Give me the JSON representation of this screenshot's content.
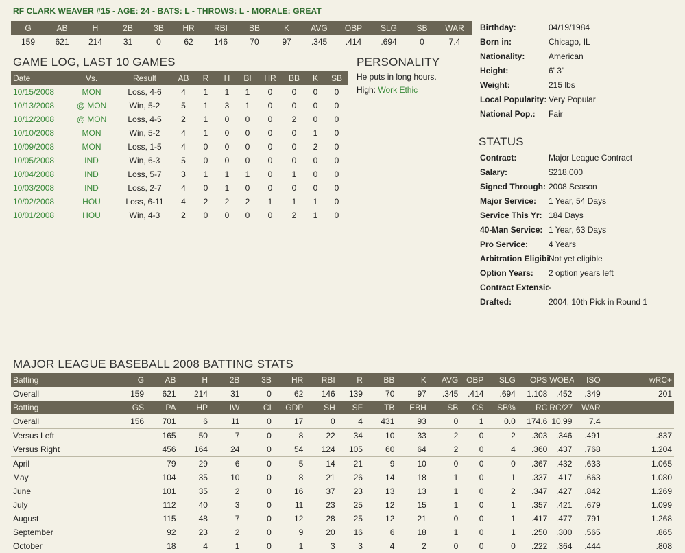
{
  "header": {
    "title": "RF CLARK WEAVER #15 - AGE: 24 - BATS: L - THROWS: L - MORALE: GREAT"
  },
  "summary": {
    "columns": [
      "G",
      "AB",
      "H",
      "2B",
      "3B",
      "HR",
      "RBI",
      "BB",
      "K",
      "AVG",
      "OBP",
      "SLG",
      "SB",
      "WAR"
    ],
    "values": [
      "159",
      "621",
      "214",
      "31",
      "0",
      "62",
      "146",
      "70",
      "97",
      ".345",
      ".414",
      ".694",
      "0",
      "7.4"
    ]
  },
  "game_log": {
    "title": "GAME LOG, LAST 10 GAMES",
    "columns": [
      "Date",
      "Vs.",
      "Result",
      "AB",
      "R",
      "H",
      "BI",
      "HR",
      "BB",
      "K",
      "SB"
    ],
    "rows": [
      [
        "10/15/2008",
        "MON",
        "Loss, 4-6",
        "4",
        "1",
        "1",
        "1",
        "0",
        "0",
        "0",
        "0"
      ],
      [
        "10/13/2008",
        "@ MON",
        "Win, 5-2",
        "5",
        "1",
        "3",
        "1",
        "0",
        "0",
        "0",
        "0"
      ],
      [
        "10/12/2008",
        "@ MON",
        "Loss, 4-5",
        "2",
        "1",
        "0",
        "0",
        "0",
        "2",
        "0",
        "0"
      ],
      [
        "10/10/2008",
        "MON",
        "Win, 5-2",
        "4",
        "1",
        "0",
        "0",
        "0",
        "0",
        "1",
        "0"
      ],
      [
        "10/09/2008",
        "MON",
        "Loss, 1-5",
        "4",
        "0",
        "0",
        "0",
        "0",
        "0",
        "2",
        "0"
      ],
      [
        "10/05/2008",
        "IND",
        "Win, 6-3",
        "5",
        "0",
        "0",
        "0",
        "0",
        "0",
        "0",
        "0"
      ],
      [
        "10/04/2008",
        "IND",
        "Loss, 5-7",
        "3",
        "1",
        "1",
        "1",
        "0",
        "1",
        "0",
        "0"
      ],
      [
        "10/03/2008",
        "IND",
        "Loss, 2-7",
        "4",
        "0",
        "1",
        "0",
        "0",
        "0",
        "0",
        "0"
      ],
      [
        "10/02/2008",
        "HOU",
        "Loss, 6-11",
        "4",
        "2",
        "2",
        "2",
        "1",
        "1",
        "1",
        "0"
      ],
      [
        "10/01/2008",
        "HOU",
        "Win, 4-3",
        "2",
        "0",
        "0",
        "0",
        "0",
        "2",
        "1",
        "0"
      ]
    ]
  },
  "personality": {
    "title": "PERSONALITY",
    "line1": "He puts in long hours.",
    "high_label": "High:",
    "high_value": "Work Ethic"
  },
  "bio": [
    {
      "k": "Birthday:",
      "v": "04/19/1984"
    },
    {
      "k": "Born in:",
      "v": "Chicago, IL"
    },
    {
      "k": "Nationality:",
      "v": "American"
    },
    {
      "k": "Height:",
      "v": "6' 3\""
    },
    {
      "k": "Weight:",
      "v": "215 lbs"
    },
    {
      "k": "Local Popularity:",
      "v": "Very Popular"
    },
    {
      "k": "National Pop.:",
      "v": "Fair"
    }
  ],
  "status": {
    "title": "STATUS",
    "items": [
      {
        "k": "Contract:",
        "v": "Major League Contract"
      },
      {
        "k": "Salary:",
        "v": "$218,000"
      },
      {
        "k": "Signed Through:",
        "v": "2008 Season"
      },
      {
        "k": "Major Service:",
        "v": "1 Year, 54 Days"
      },
      {
        "k": "Service This Yr:",
        "v": "184 Days"
      },
      {
        "k": "40-Man Service:",
        "v": "1 Year, 63 Days"
      },
      {
        "k": "Pro Service:",
        "v": "4 Years"
      },
      {
        "k": "Arbitration Eligibility:",
        "v": "Not yet eligible"
      },
      {
        "k": "Option Years:",
        "v": "2 option years left"
      },
      {
        "k": "Contract Extension:",
        "v": "-"
      },
      {
        "k": "Drafted:",
        "v": "2004, 10th Pick in Round 1"
      }
    ]
  },
  "batting": {
    "title": "MAJOR LEAGUE BASEBALL 2008 BATTING STATS",
    "header1": [
      "Batting",
      "G",
      "AB",
      "H",
      "2B",
      "3B",
      "HR",
      "RBI",
      "R",
      "BB",
      "K",
      "AVG",
      "OBP",
      "SLG",
      "OPS",
      "WOBA",
      "ISO",
      "wRC+"
    ],
    "overall1": [
      "Overall",
      "159",
      "621",
      "214",
      "31",
      "0",
      "62",
      "146",
      "139",
      "70",
      "97",
      ".345",
      ".414",
      ".694",
      "1.108",
      ".452",
      ".349",
      "201"
    ],
    "header2": [
      "Batting",
      "GS",
      "PA",
      "HP",
      "IW",
      "CI",
      "GDP",
      "SH",
      "SF",
      "TB",
      "EBH",
      "SB",
      "CS",
      "SB%",
      "RC",
      "RC/27",
      "WAR",
      ""
    ],
    "overall2": [
      "Overall",
      "156",
      "701",
      "6",
      "11",
      "0",
      "17",
      "0",
      "4",
      "431",
      "93",
      "0",
      "1",
      "0.0",
      "174.6",
      "10.99",
      "7.4",
      ""
    ],
    "splits": [
      [
        "Versus Left",
        "",
        "165",
        "50",
        "7",
        "0",
        "8",
        "22",
        "34",
        "10",
        "33",
        "2",
        "0",
        "2",
        ".303",
        ".346",
        ".491",
        ".837"
      ],
      [
        "Versus Right",
        "",
        "456",
        "164",
        "24",
        "0",
        "54",
        "124",
        "105",
        "60",
        "64",
        "2",
        "0",
        "4",
        ".360",
        ".437",
        ".768",
        "1.204"
      ],
      [
        "April",
        "",
        "79",
        "29",
        "6",
        "0",
        "5",
        "14",
        "21",
        "9",
        "10",
        "0",
        "0",
        "0",
        ".367",
        ".432",
        ".633",
        "1.065"
      ],
      [
        "May",
        "",
        "104",
        "35",
        "10",
        "0",
        "8",
        "21",
        "26",
        "14",
        "18",
        "1",
        "0",
        "1",
        ".337",
        ".417",
        ".663",
        "1.080"
      ],
      [
        "June",
        "",
        "101",
        "35",
        "2",
        "0",
        "16",
        "37",
        "23",
        "13",
        "13",
        "1",
        "0",
        "2",
        ".347",
        ".427",
        ".842",
        "1.269"
      ],
      [
        "July",
        "",
        "112",
        "40",
        "3",
        "0",
        "11",
        "23",
        "25",
        "12",
        "15",
        "1",
        "0",
        "1",
        ".357",
        ".421",
        ".679",
        "1.099"
      ],
      [
        "August",
        "",
        "115",
        "48",
        "7",
        "0",
        "12",
        "28",
        "25",
        "12",
        "21",
        "0",
        "0",
        "1",
        ".417",
        ".477",
        ".791",
        "1.268"
      ],
      [
        "September",
        "",
        "92",
        "23",
        "2",
        "0",
        "9",
        "20",
        "16",
        "6",
        "18",
        "1",
        "0",
        "1",
        ".250",
        ".300",
        ".565",
        ".865"
      ],
      [
        "October",
        "",
        "18",
        "4",
        "1",
        "0",
        "1",
        "3",
        "3",
        "4",
        "2",
        "0",
        "0",
        "0",
        ".222",
        ".364",
        ".444",
        ".808"
      ]
    ]
  }
}
